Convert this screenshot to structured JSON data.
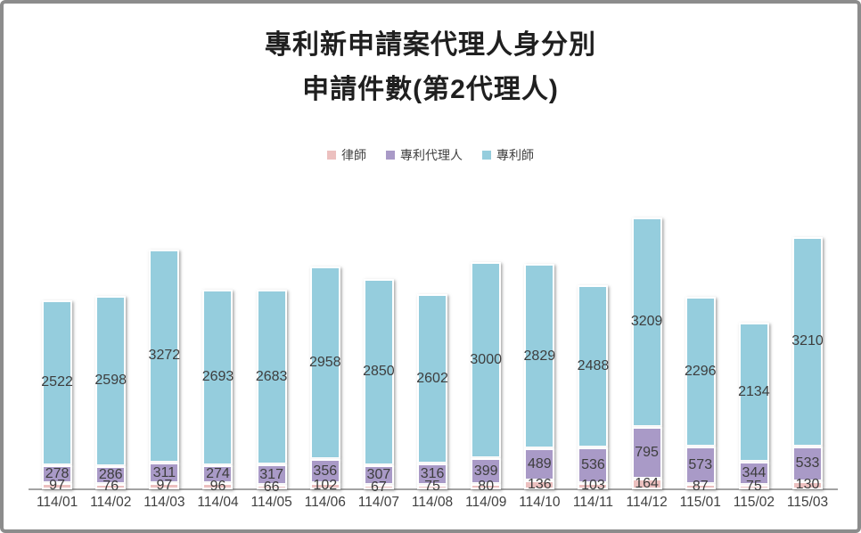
{
  "chart_data": {
    "type": "bar",
    "stacked": true,
    "title_lines": [
      "專利新申請案代理人身分別",
      "申請件數(第2代理人)"
    ],
    "legend_position": "top",
    "grid": false,
    "y_axis_visible": false,
    "ylim": [
      0,
      4500
    ],
    "categories": [
      "114/01",
      "114/02",
      "114/03",
      "114/04",
      "114/05",
      "114/06",
      "114/07",
      "114/08",
      "114/09",
      "114/10",
      "114/11",
      "114/12",
      "115/01",
      "115/02",
      "115/03"
    ],
    "series": [
      {
        "name": "律師",
        "color": "#ecc0bf",
        "values": [
          97,
          76,
          97,
          96,
          66,
          102,
          67,
          75,
          80,
          136,
          103,
          164,
          87,
          75,
          130
        ]
      },
      {
        "name": "專利代理人",
        "color": "#a99ac7",
        "values": [
          278,
          286,
          311,
          274,
          317,
          356,
          307,
          316,
          399,
          489,
          536,
          795,
          573,
          344,
          533
        ]
      },
      {
        "name": "專利師",
        "color": "#95cddd",
        "values": [
          2522,
          2598,
          3272,
          2693,
          2683,
          2958,
          2850,
          2602,
          3000,
          2829,
          2488,
          3209,
          2296,
          2134,
          3210
        ]
      }
    ],
    "colors": {
      "frame_border": "#8c8c8c",
      "axis_line": "#a3a3a3",
      "title_text": "#1f1f1f",
      "label_text": "#3d3d3d",
      "axis_label_text": "#404040"
    }
  }
}
